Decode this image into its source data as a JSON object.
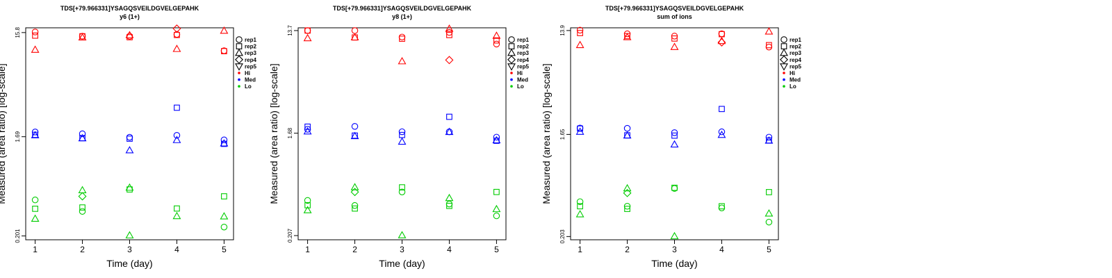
{
  "colors": {
    "Hi": "#ff0000",
    "Med": "#0000ff",
    "Lo": "#00cc00",
    "axis": "#000000"
  },
  "legend": {
    "reps": [
      {
        "label": "rep1",
        "shape": "circle"
      },
      {
        "label": "rep2",
        "shape": "square"
      },
      {
        "label": "rep3",
        "shape": "triangle-up"
      },
      {
        "label": "rep4",
        "shape": "diamond"
      },
      {
        "label": "rep5",
        "shape": "triangle-down"
      }
    ],
    "levels": [
      {
        "label": "Hi",
        "color": "#ff0000"
      },
      {
        "label": "Med",
        "color": "#0000ff"
      },
      {
        "label": "Lo",
        "color": "#00cc00"
      }
    ]
  },
  "chart_data": [
    {
      "type": "scatter",
      "title": "TDS[+79.966331]YSAGQSVEILDGVELGEPAHK",
      "subtitle": "y6 (1+)",
      "xlabel": "Time (day)",
      "ylabel": "Measured (area ratio) [log-scale]",
      "y_scale": "log",
      "ylim": [
        0.185,
        17.5
      ],
      "xlim": [
        0.8,
        5.2
      ],
      "xticks": [
        1,
        2,
        3,
        4,
        5
      ],
      "yticks": [
        {
          "value": 0.201,
          "label": "0.201"
        },
        {
          "value": 1.69,
          "label": "1.69"
        },
        {
          "value": 15.8,
          "label": "15.8"
        }
      ],
      "points": [
        {
          "level": "Hi",
          "rep": "rep1",
          "x": 1,
          "y": 16.0
        },
        {
          "level": "Hi",
          "rep": "rep2",
          "x": 1,
          "y": 14.8
        },
        {
          "level": "Hi",
          "rep": "rep3",
          "x": 1,
          "y": 10.9
        },
        {
          "level": "Hi",
          "rep": "rep1",
          "x": 2,
          "y": 14.6
        },
        {
          "level": "Hi",
          "rep": "rep2",
          "x": 2,
          "y": 14.6
        },
        {
          "level": "Hi",
          "rep": "rep3",
          "x": 2,
          "y": 14.2
        },
        {
          "level": "Hi",
          "rep": "rep1",
          "x": 3,
          "y": 14.6
        },
        {
          "level": "Hi",
          "rep": "rep2",
          "x": 3,
          "y": 14.3
        },
        {
          "level": "Hi",
          "rep": "rep3",
          "x": 3,
          "y": 14.9
        },
        {
          "level": "Hi",
          "rep": "rep4",
          "x": 4,
          "y": 17.2
        },
        {
          "level": "Hi",
          "rep": "rep1",
          "x": 4,
          "y": 15.2
        },
        {
          "level": "Hi",
          "rep": "rep2",
          "x": 4,
          "y": 15.0
        },
        {
          "level": "Hi",
          "rep": "rep3",
          "x": 4,
          "y": 11.1
        },
        {
          "level": "Hi",
          "rep": "rep3",
          "x": 5,
          "y": 16.4
        },
        {
          "level": "Hi",
          "rep": "rep1",
          "x": 5,
          "y": 10.7
        },
        {
          "level": "Hi",
          "rep": "rep2",
          "x": 5,
          "y": 10.6
        },
        {
          "level": "Med",
          "rep": "rep1",
          "x": 1,
          "y": 1.87
        },
        {
          "level": "Med",
          "rep": "rep2",
          "x": 1,
          "y": 1.76
        },
        {
          "level": "Med",
          "rep": "rep3",
          "x": 1,
          "y": 1.74
        },
        {
          "level": "Med",
          "rep": "rep1",
          "x": 2,
          "y": 1.8
        },
        {
          "level": "Med",
          "rep": "rep2",
          "x": 2,
          "y": 1.64
        },
        {
          "level": "Med",
          "rep": "rep3",
          "x": 2,
          "y": 1.63
        },
        {
          "level": "Med",
          "rep": "rep1",
          "x": 3,
          "y": 1.67
        },
        {
          "level": "Med",
          "rep": "rep2",
          "x": 3,
          "y": 1.62
        },
        {
          "level": "Med",
          "rep": "rep3",
          "x": 3,
          "y": 1.26
        },
        {
          "level": "Med",
          "rep": "rep2",
          "x": 4,
          "y": 3.15
        },
        {
          "level": "Med",
          "rep": "rep1",
          "x": 4,
          "y": 1.74
        },
        {
          "level": "Med",
          "rep": "rep3",
          "x": 4,
          "y": 1.57
        },
        {
          "level": "Med",
          "rep": "rep1",
          "x": 5,
          "y": 1.58
        },
        {
          "level": "Med",
          "rep": "rep2",
          "x": 5,
          "y": 1.45
        },
        {
          "level": "Med",
          "rep": "rep3",
          "x": 5,
          "y": 1.46
        },
        {
          "level": "Lo",
          "rep": "rep1",
          "x": 1,
          "y": 0.435
        },
        {
          "level": "Lo",
          "rep": "rep2",
          "x": 1,
          "y": 0.36
        },
        {
          "level": "Lo",
          "rep": "rep3",
          "x": 1,
          "y": 0.29
        },
        {
          "level": "Lo",
          "rep": "rep3",
          "x": 2,
          "y": 0.535
        },
        {
          "level": "Lo",
          "rep": "rep4",
          "x": 2,
          "y": 0.47
        },
        {
          "level": "Lo",
          "rep": "rep2",
          "x": 2,
          "y": 0.37
        },
        {
          "level": "Lo",
          "rep": "rep1",
          "x": 2,
          "y": 0.34
        },
        {
          "level": "Lo",
          "rep": "rep3",
          "x": 3,
          "y": 0.565
        },
        {
          "level": "Lo",
          "rep": "rep2",
          "x": 3,
          "y": 0.545
        },
        {
          "level": "Lo",
          "rep": "rep3",
          "x": 3,
          "y": 0.203
        },
        {
          "level": "Lo",
          "rep": "rep2",
          "x": 4,
          "y": 0.362
        },
        {
          "level": "Lo",
          "rep": "rep3",
          "x": 4,
          "y": 0.307
        },
        {
          "level": "Lo",
          "rep": "rep2",
          "x": 5,
          "y": 0.47
        },
        {
          "level": "Lo",
          "rep": "rep3",
          "x": 5,
          "y": 0.305
        },
        {
          "level": "Lo",
          "rep": "rep1",
          "x": 5,
          "y": 0.243
        }
      ]
    },
    {
      "type": "scatter",
      "title": "TDS[+79.966331]YSAGQSVEILDGVELGEPAHK",
      "subtitle": "y8 (1+)",
      "xlabel": "Time (day)",
      "ylabel": "Measured (area ratio) [log-scale]",
      "y_scale": "log",
      "ylim": [
        0.19,
        14.5
      ],
      "xlim": [
        0.8,
        5.2
      ],
      "xticks": [
        1,
        2,
        3,
        4,
        5
      ],
      "yticks": [
        {
          "value": 0.207,
          "label": "0.207"
        },
        {
          "value": 1.68,
          "label": "1.68"
        },
        {
          "value": 13.7,
          "label": "13.7"
        }
      ],
      "points": [
        {
          "level": "Hi",
          "rep": "rep1",
          "x": 1,
          "y": 13.7
        },
        {
          "level": "Hi",
          "rep": "rep2",
          "x": 1,
          "y": 13.7
        },
        {
          "level": "Hi",
          "rep": "rep3",
          "x": 1,
          "y": 11.7
        },
        {
          "level": "Hi",
          "rep": "rep1",
          "x": 2,
          "y": 13.7
        },
        {
          "level": "Hi",
          "rep": "rep2",
          "x": 2,
          "y": 11.9
        },
        {
          "level": "Hi",
          "rep": "rep3",
          "x": 2,
          "y": 11.9
        },
        {
          "level": "Hi",
          "rep": "rep1",
          "x": 3,
          "y": 12.0
        },
        {
          "level": "Hi",
          "rep": "rep2",
          "x": 3,
          "y": 11.6
        },
        {
          "level": "Hi",
          "rep": "rep3",
          "x": 3,
          "y": 7.3
        },
        {
          "level": "Hi",
          "rep": "rep3",
          "x": 4,
          "y": 14.2
        },
        {
          "level": "Hi",
          "rep": "rep1",
          "x": 4,
          "y": 13.2
        },
        {
          "level": "Hi",
          "rep": "rep2",
          "x": 4,
          "y": 12.5
        },
        {
          "level": "Hi",
          "rep": "rep4",
          "x": 4,
          "y": 7.5
        },
        {
          "level": "Hi",
          "rep": "rep3",
          "x": 5,
          "y": 12.3
        },
        {
          "level": "Hi",
          "rep": "rep2",
          "x": 5,
          "y": 11.2
        },
        {
          "level": "Hi",
          "rep": "rep1",
          "x": 5,
          "y": 10.4
        },
        {
          "level": "Med",
          "rep": "rep2",
          "x": 1,
          "y": 1.92
        },
        {
          "level": "Med",
          "rep": "rep1",
          "x": 1,
          "y": 1.82
        },
        {
          "level": "Med",
          "rep": "rep3",
          "x": 1,
          "y": 1.74
        },
        {
          "level": "Med",
          "rep": "rep1",
          "x": 2,
          "y": 1.93
        },
        {
          "level": "Med",
          "rep": "rep2",
          "x": 2,
          "y": 1.6
        },
        {
          "level": "Med",
          "rep": "rep3",
          "x": 2,
          "y": 1.58
        },
        {
          "level": "Med",
          "rep": "rep1",
          "x": 3,
          "y": 1.73
        },
        {
          "level": "Med",
          "rep": "rep2",
          "x": 3,
          "y": 1.62
        },
        {
          "level": "Med",
          "rep": "rep3",
          "x": 3,
          "y": 1.41
        },
        {
          "level": "Med",
          "rep": "rep2",
          "x": 4,
          "y": 2.35
        },
        {
          "level": "Med",
          "rep": "rep1",
          "x": 4,
          "y": 1.73
        },
        {
          "level": "Med",
          "rep": "rep3",
          "x": 4,
          "y": 1.72
        },
        {
          "level": "Med",
          "rep": "rep1",
          "x": 5,
          "y": 1.55
        },
        {
          "level": "Med",
          "rep": "rep2",
          "x": 5,
          "y": 1.44
        },
        {
          "level": "Med",
          "rep": "rep3",
          "x": 5,
          "y": 1.45
        },
        {
          "level": "Lo",
          "rep": "rep1",
          "x": 1,
          "y": 0.425
        },
        {
          "level": "Lo",
          "rep": "rep2",
          "x": 1,
          "y": 0.385
        },
        {
          "level": "Lo",
          "rep": "rep3",
          "x": 1,
          "y": 0.347
        },
        {
          "level": "Lo",
          "rep": "rep3",
          "x": 2,
          "y": 0.555
        },
        {
          "level": "Lo",
          "rep": "rep4",
          "x": 2,
          "y": 0.505
        },
        {
          "level": "Lo",
          "rep": "rep1",
          "x": 2,
          "y": 0.383
        },
        {
          "level": "Lo",
          "rep": "rep2",
          "x": 2,
          "y": 0.36
        },
        {
          "level": "Lo",
          "rep": "rep2",
          "x": 3,
          "y": 0.555
        },
        {
          "level": "Lo",
          "rep": "rep1",
          "x": 3,
          "y": 0.505
        },
        {
          "level": "Lo",
          "rep": "rep3",
          "x": 3,
          "y": 0.208
        },
        {
          "level": "Lo",
          "rep": "rep3",
          "x": 4,
          "y": 0.445
        },
        {
          "level": "Lo",
          "rep": "rep1",
          "x": 4,
          "y": 0.395
        },
        {
          "level": "Lo",
          "rep": "rep2",
          "x": 4,
          "y": 0.38
        },
        {
          "level": "Lo",
          "rep": "rep2",
          "x": 5,
          "y": 0.505
        },
        {
          "level": "Lo",
          "rep": "rep3",
          "x": 5,
          "y": 0.355
        },
        {
          "level": "Lo",
          "rep": "rep1",
          "x": 5,
          "y": 0.31
        }
      ]
    },
    {
      "type": "scatter",
      "title": "TDS[+79.966331]YSAGQSVEILDGVELGEPAHK",
      "subtitle": "sum of ions",
      "xlabel": "Time (day)",
      "ylabel": "Measured (area ratio) [log-scale]",
      "y_scale": "log",
      "ylim": [
        0.19,
        14.7
      ],
      "xlim": [
        0.8,
        5.2
      ],
      "xticks": [
        1,
        2,
        3,
        4,
        5
      ],
      "yticks": [
        {
          "value": 0.203,
          "label": "0.203"
        },
        {
          "value": 1.65,
          "label": "1.65"
        },
        {
          "value": 13.9,
          "label": "13.9"
        }
      ],
      "points": [
        {
          "level": "Hi",
          "rep": "rep1",
          "x": 1,
          "y": 14.0
        },
        {
          "level": "Hi",
          "rep": "rep2",
          "x": 1,
          "y": 13.2
        },
        {
          "level": "Hi",
          "rep": "rep3",
          "x": 1,
          "y": 10.3
        },
        {
          "level": "Hi",
          "rep": "rep1",
          "x": 2,
          "y": 13.0
        },
        {
          "level": "Hi",
          "rep": "rep2",
          "x": 2,
          "y": 12.4
        },
        {
          "level": "Hi",
          "rep": "rep3",
          "x": 2,
          "y": 12.1
        },
        {
          "level": "Hi",
          "rep": "rep1",
          "x": 3,
          "y": 12.4
        },
        {
          "level": "Hi",
          "rep": "rep2",
          "x": 3,
          "y": 11.8
        },
        {
          "level": "Hi",
          "rep": "rep3",
          "x": 3,
          "y": 9.9
        },
        {
          "level": "Hi",
          "rep": "rep1",
          "x": 4,
          "y": 13.0
        },
        {
          "level": "Hi",
          "rep": "rep2",
          "x": 4,
          "y": 12.9
        },
        {
          "level": "Hi",
          "rep": "rep3",
          "x": 4,
          "y": 11.2
        },
        {
          "level": "Hi",
          "rep": "rep4",
          "x": 4,
          "y": 10.9
        },
        {
          "level": "Hi",
          "rep": "rep3",
          "x": 5,
          "y": 13.6
        },
        {
          "level": "Hi",
          "rep": "rep2",
          "x": 5,
          "y": 10.3
        },
        {
          "level": "Hi",
          "rep": "rep1",
          "x": 5,
          "y": 9.9
        },
        {
          "level": "Med",
          "rep": "rep1",
          "x": 1,
          "y": 1.88
        },
        {
          "level": "Med",
          "rep": "rep2",
          "x": 1,
          "y": 1.86
        },
        {
          "level": "Med",
          "rep": "rep3",
          "x": 1,
          "y": 1.74
        },
        {
          "level": "Med",
          "rep": "rep1",
          "x": 2,
          "y": 1.87
        },
        {
          "level": "Med",
          "rep": "rep2",
          "x": 2,
          "y": 1.62
        },
        {
          "level": "Med",
          "rep": "rep3",
          "x": 2,
          "y": 1.61
        },
        {
          "level": "Med",
          "rep": "rep1",
          "x": 3,
          "y": 1.71
        },
        {
          "level": "Med",
          "rep": "rep2",
          "x": 3,
          "y": 1.61
        },
        {
          "level": "Med",
          "rep": "rep3",
          "x": 3,
          "y": 1.34
        },
        {
          "level": "Med",
          "rep": "rep2",
          "x": 4,
          "y": 2.78
        },
        {
          "level": "Med",
          "rep": "rep1",
          "x": 4,
          "y": 1.74
        },
        {
          "level": "Med",
          "rep": "rep3",
          "x": 4,
          "y": 1.63
        },
        {
          "level": "Med",
          "rep": "rep1",
          "x": 5,
          "y": 1.56
        },
        {
          "level": "Med",
          "rep": "rep2",
          "x": 5,
          "y": 1.46
        },
        {
          "level": "Med",
          "rep": "rep3",
          "x": 5,
          "y": 1.45
        },
        {
          "level": "Lo",
          "rep": "rep1",
          "x": 1,
          "y": 0.415
        },
        {
          "level": "Lo",
          "rep": "rep2",
          "x": 1,
          "y": 0.378
        },
        {
          "level": "Lo",
          "rep": "rep3",
          "x": 1,
          "y": 0.32
        },
        {
          "level": "Lo",
          "rep": "rep3",
          "x": 2,
          "y": 0.545
        },
        {
          "level": "Lo",
          "rep": "rep4",
          "x": 2,
          "y": 0.496
        },
        {
          "level": "Lo",
          "rep": "rep1",
          "x": 2,
          "y": 0.378
        },
        {
          "level": "Lo",
          "rep": "rep2",
          "x": 2,
          "y": 0.358
        },
        {
          "level": "Lo",
          "rep": "rep2",
          "x": 3,
          "y": 0.552
        },
        {
          "level": "Lo",
          "rep": "rep1",
          "x": 3,
          "y": 0.545
        },
        {
          "level": "Lo",
          "rep": "rep3",
          "x": 3,
          "y": 0.204
        },
        {
          "level": "Lo",
          "rep": "rep2",
          "x": 4,
          "y": 0.378
        },
        {
          "level": "Lo",
          "rep": "rep1",
          "x": 4,
          "y": 0.365
        },
        {
          "level": "Lo",
          "rep": "rep2",
          "x": 5,
          "y": 0.505
        },
        {
          "level": "Lo",
          "rep": "rep3",
          "x": 5,
          "y": 0.325
        },
        {
          "level": "Lo",
          "rep": "rep1",
          "x": 5,
          "y": 0.273
        }
      ]
    }
  ]
}
